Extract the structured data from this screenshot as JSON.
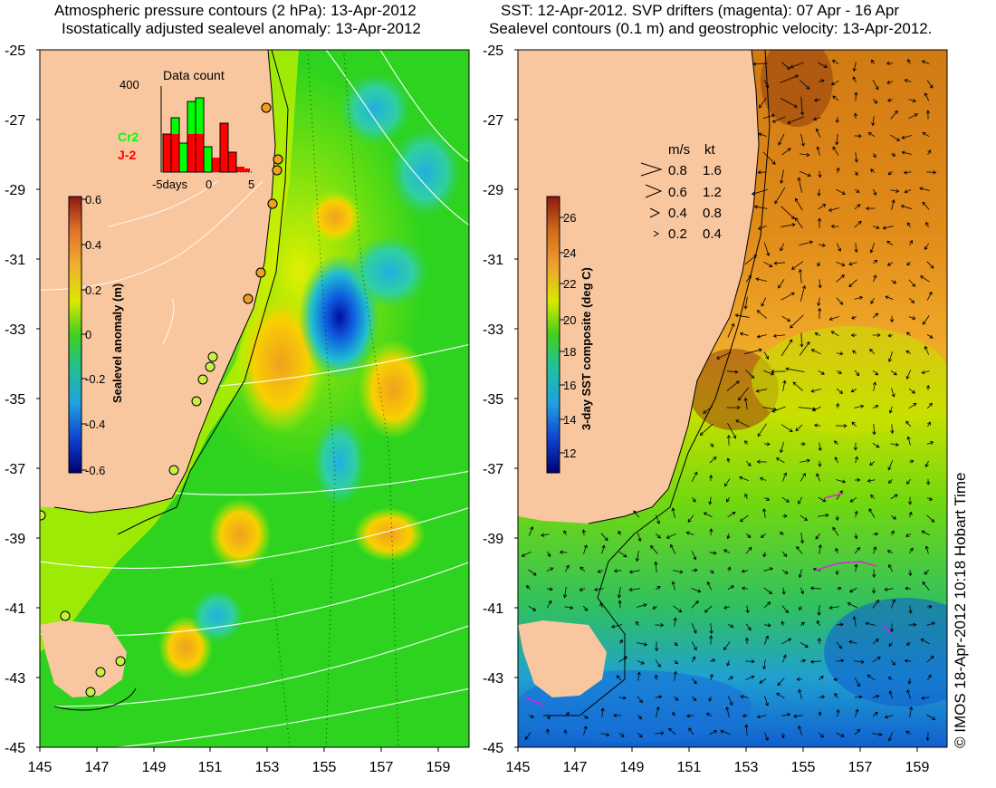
{
  "left_panel": {
    "title_line1": "Atmospheric pressure contours (2 hPa): 13-Apr-2012",
    "title_line2": "Isostatically adjusted sealevel anomaly: 13-Apr-2012",
    "y_ticks": [
      "-25",
      "-27",
      "-29",
      "-31",
      "-33",
      "-35",
      "-37",
      "-39",
      "-41",
      "-43",
      "-45"
    ],
    "x_ticks": [
      "145",
      "147",
      "149",
      "151",
      "153",
      "155",
      "157",
      "159"
    ],
    "colorbar": {
      "label": "Sealevel anomaly (m)",
      "ticks": [
        "0.6",
        "0.4",
        "0.2",
        "0",
        "-0.2",
        "-0.4",
        "-0.6"
      ],
      "range": [
        -0.6,
        0.6
      ]
    },
    "inset": {
      "title": "Data count",
      "y_label": "400",
      "x_ticks": [
        "-5days",
        "0",
        "5"
      ],
      "series": [
        {
          "name": "Cr2",
          "color": "#00ff00"
        },
        {
          "name": "J-2",
          "color": "#ff0000"
        }
      ]
    }
  },
  "right_panel": {
    "title_line1": "SST: 12-Apr-2012. SVP drifters (magenta): 07 Apr - 16 Apr",
    "title_line2": "Sealevel contours (0.1 m) and geostrophic velocity: 13-Apr-2012.",
    "y_ticks": [
      "-25",
      "-27",
      "-29",
      "-31",
      "-33",
      "-35",
      "-37",
      "-39",
      "-41",
      "-43",
      "-45"
    ],
    "x_ticks": [
      "145",
      "147",
      "149",
      "151",
      "153",
      "155",
      "157",
      "159"
    ],
    "colorbar": {
      "label": "3-day SST composite (deg C)",
      "ticks": [
        "26",
        "24",
        "22",
        "20",
        "18",
        "16",
        "14",
        "12"
      ]
    },
    "velocity_legend": {
      "header_ms": "m/s",
      "header_kt": "kt",
      "rows": [
        {
          "ms": "0.8",
          "kt": "1.6"
        },
        {
          "ms": "0.6",
          "kt": "1.2"
        },
        {
          "ms": "0.4",
          "kt": "0.8"
        },
        {
          "ms": "0.2",
          "kt": "0.4"
        }
      ]
    }
  },
  "credit": "© IMOS 18-Apr-2012 10:18 Hobart Time",
  "colors": {
    "land": "#f9c79f",
    "ocean_green": "#2dd31e",
    "ocean_yellow": "#b8f000",
    "warm_orange": "#f5a623",
    "deep_blue": "#0a1aa8",
    "sst_brown": "#d07a14"
  }
}
